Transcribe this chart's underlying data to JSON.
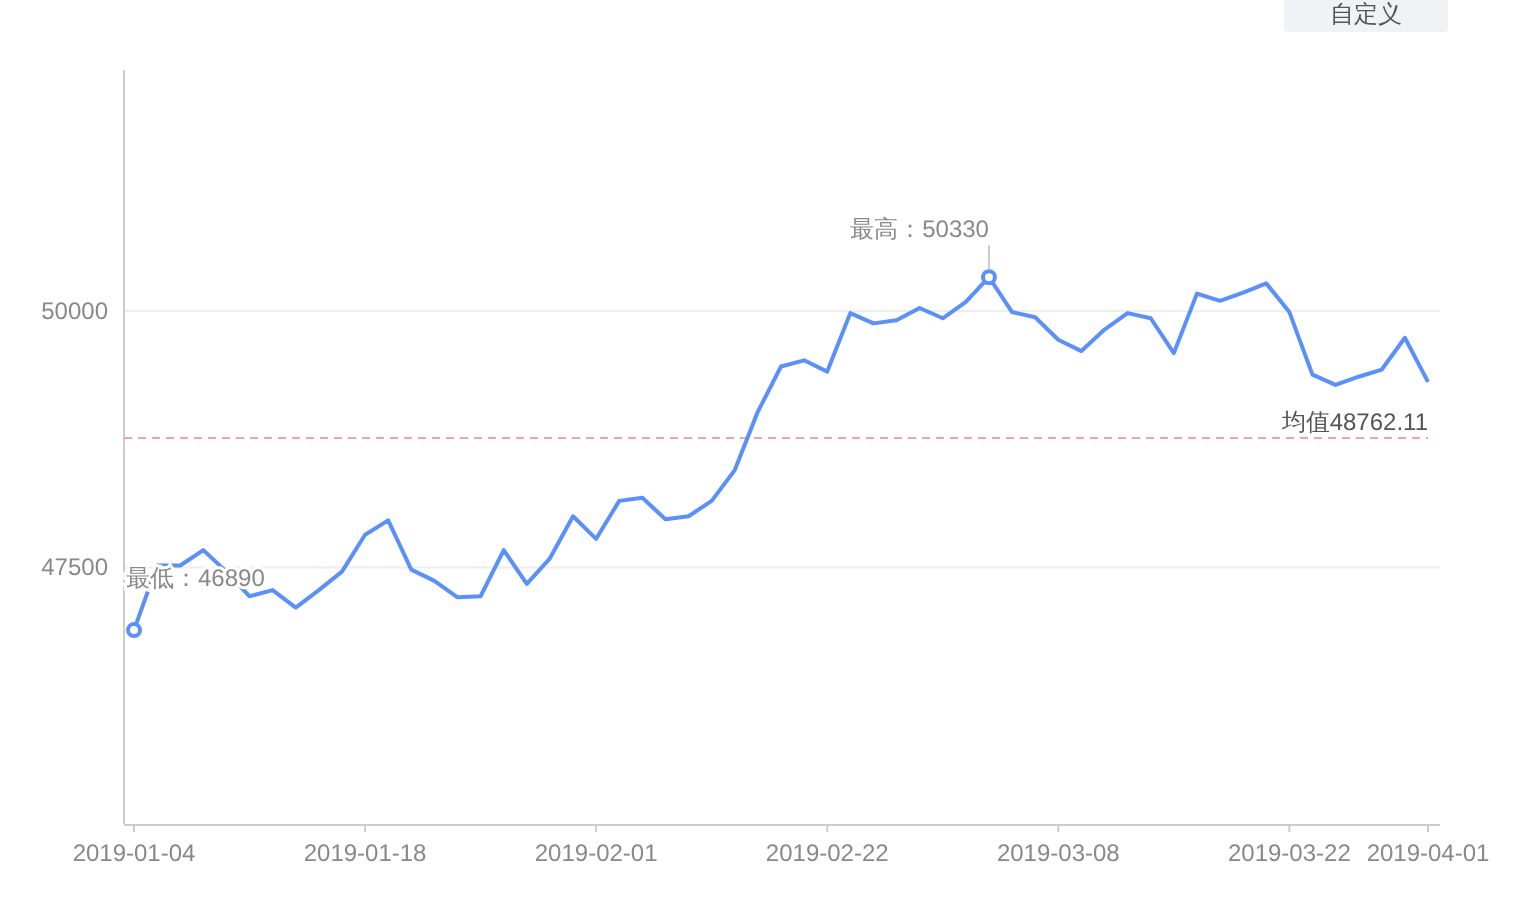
{
  "chart_data": {
    "type": "line",
    "categories": [
      "2019-01-04",
      null,
      null,
      null,
      null,
      null,
      null,
      null,
      null,
      null,
      "2019-01-18",
      null,
      null,
      null,
      null,
      null,
      null,
      null,
      null,
      null,
      "2019-02-01",
      null,
      null,
      null,
      null,
      null,
      null,
      null,
      null,
      null,
      "2019-02-22",
      null,
      null,
      null,
      null,
      null,
      null,
      null,
      null,
      null,
      "2019-03-08",
      null,
      null,
      null,
      null,
      null,
      null,
      null,
      null,
      null,
      "2019-03-22",
      null,
      null,
      null,
      null,
      null,
      "2019-04-01"
    ],
    "series": [
      {
        "color": "#5b8ff9",
        "values": [
          46890,
          47520,
          47520,
          47670,
          47460,
          47220,
          47280,
          47110,
          47280,
          47460,
          47820,
          47960,
          47480,
          47370,
          47210,
          47220,
          47670,
          47340,
          47590,
          48000,
          47780,
          48150,
          48180,
          47970,
          48000,
          48150,
          48450,
          49020,
          49460,
          49520,
          49410,
          49980,
          49880,
          49910,
          50030,
          49930,
          50090,
          50330,
          49990,
          49940,
          49720,
          49610,
          49820,
          49980,
          49930,
          49590,
          50170,
          50100,
          50180,
          50270,
          49990,
          49380,
          49280,
          49360,
          49430,
          49740,
          49310
        ]
      }
    ],
    "ylim": [
      45000,
      52350
    ],
    "yticks": [
      47500,
      50000
    ],
    "grid": "y",
    "marker": "none",
    "line_style": "solid",
    "ref_lines": [
      {
        "axis": "y",
        "value": 48762.11,
        "label": "均值48762.11",
        "color": "#f4a3a3",
        "line_style": "dashed"
      }
    ],
    "annotations": [
      {
        "text": "最低：46890",
        "x": "2019-01-04",
        "y": 46890
      },
      "最高：50330",
      "自定义"
    ]
  }
}
